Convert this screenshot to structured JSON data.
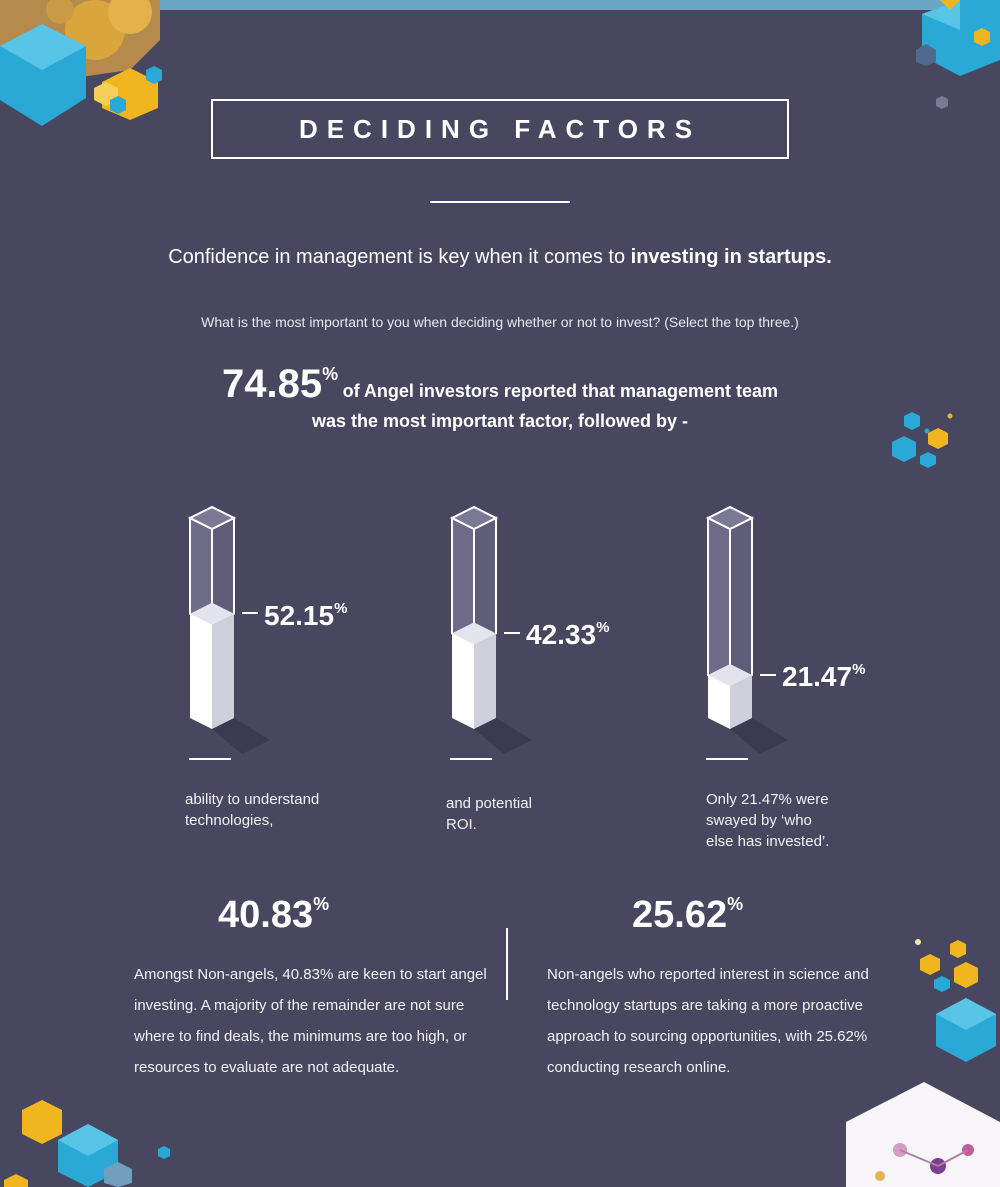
{
  "header": {
    "title": "DECIDING FACTORS",
    "intro_plain": "Confidence in management is key when it comes to",
    "intro_bold": "investing in startups.",
    "question": "What is the most important to you when deciding whether or not to invest?  (Select the top three.)"
  },
  "headline": {
    "value": "74.85",
    "unit": "%",
    "line1": "of Angel investors reported that management team",
    "line2": "was the most important factor, followed by -"
  },
  "chart_data": {
    "type": "bar",
    "categories": [
      "ability to understand technologies,",
      "and potential ROI.",
      "Only 21.47% were swayed by ‘who else has invested’."
    ],
    "values": [
      52.15,
      42.33,
      21.47
    ],
    "ylim": [
      0,
      100
    ],
    "labels": [
      {
        "value": "52.15",
        "unit": "%"
      },
      {
        "value": "42.33",
        "unit": "%"
      },
      {
        "value": "21.47",
        "unit": "%"
      }
    ],
    "captions": [
      {
        "line1": "ability to understand",
        "line2": "technologies,"
      },
      {
        "line1": "and potential",
        "line2": "ROI."
      },
      {
        "line1": "Only 21.47% were",
        "line2": "swayed by ‘who",
        "line3": "else has invested’."
      }
    ]
  },
  "stats": {
    "left": {
      "value": "40.83",
      "unit": "%",
      "lines": [
        "Amongst Non-angels, 40.83% are keen to start angel",
        "investing. A majority of the remainder are not sure",
        "where to find deals, the minimums are too high, or",
        "resources to evaluate are not adequate."
      ]
    },
    "right": {
      "value": "25.62",
      "unit": "%",
      "lines": [
        "Non-angels who reported interest in science and",
        "technology startups are taking a more proactive",
        "approach to sourcing opportunities, with 25.62%",
        "conducting research online."
      ]
    }
  },
  "colors": {
    "background": "#47475f",
    "hex_blue": "#2ba9d6",
    "hex_yellow": "#f0b51f",
    "bar_fill": "#ffffff",
    "bar_glass": "#8a8aa4"
  }
}
